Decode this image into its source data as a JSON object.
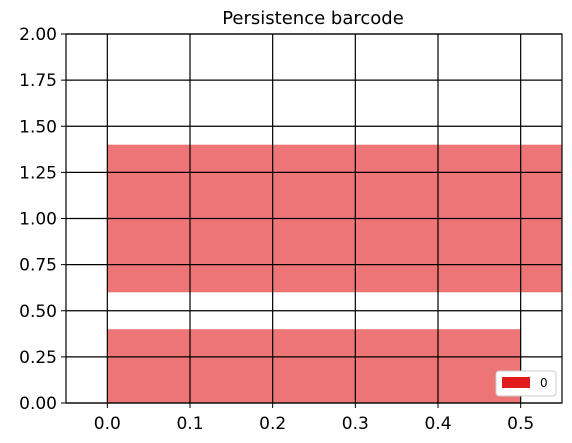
{
  "chart_data": {
    "type": "bar",
    "orientation": "horizontal",
    "title": "Persistence barcode",
    "xlabel": "",
    "ylabel": "",
    "xlim": [
      -0.05,
      0.55
    ],
    "ylim": [
      0,
      2
    ],
    "x_ticks": [
      "0.0",
      "0.1",
      "0.2",
      "0.3",
      "0.4",
      "0.5"
    ],
    "y_ticks": [
      "0.00",
      "0.25",
      "0.50",
      "0.75",
      "1.00",
      "1.25",
      "1.50",
      "1.75",
      "2.00"
    ],
    "grid": true,
    "legend_position": "bottom-right",
    "series": [
      {
        "name": "0",
        "color": "#ed7576",
        "legend_color": "#e31a1c",
        "bars": [
          {
            "start": 0.0,
            "end": 0.5,
            "y_bottom": 0.0,
            "y_top": 0.4
          },
          {
            "start": 0.0,
            "end": 0.55,
            "y_bottom": 0.6,
            "y_top": 1.4
          }
        ]
      }
    ]
  }
}
